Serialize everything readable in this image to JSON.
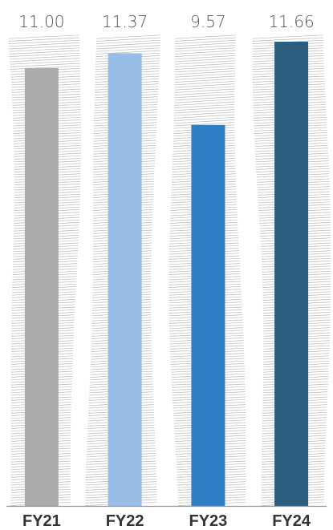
{
  "chart_data": {
    "type": "bar",
    "categories": [
      "FY21",
      "FY22",
      "FY23",
      "FY24"
    ],
    "values": [
      11.0,
      11.37,
      9.57,
      11.66
    ],
    "value_labels": [
      "11.00",
      "11.37",
      "9.57",
      "11.66"
    ],
    "ylim": [
      0,
      11.66
    ],
    "bar_colors": [
      "#ababab",
      "#98bde6",
      "#2f7fc6",
      "#2b5d7f"
    ],
    "background_pattern": "hatched-columns",
    "hatch_color": "#b8b8b8",
    "axis_color": "#999999",
    "grid": false,
    "legend": "none",
    "title": "",
    "xlabel": "",
    "ylabel": ""
  }
}
